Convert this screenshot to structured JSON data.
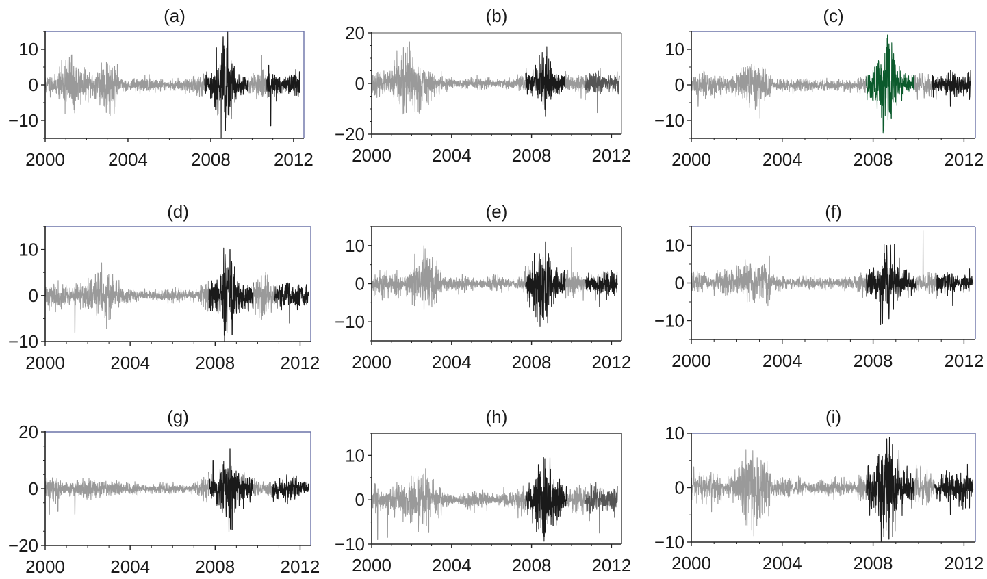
{
  "figure": {
    "colors": {
      "calm": "#9a9a9a",
      "crisis": "#1a1a1a",
      "second_period_dark": "#1a1a1a",
      "second_period_mid": "#555555",
      "highlight": "#0b5a2c",
      "axes_frame_blue": "#6b73a8",
      "axes_frame_grey": "#888888",
      "axes_frame_black": "#333333"
    }
  },
  "chart_data": [
    {
      "type": "line",
      "title": "(a)",
      "xlabel": "",
      "ylabel": "",
      "xlim": [
        2000,
        2012.5
      ],
      "ylim": [
        -15,
        15
      ],
      "xticks": [
        "2000",
        "2004",
        "2008",
        "2012"
      ],
      "yticks": [
        "10",
        "0",
        "−10"
      ],
      "ytick_values": [
        10,
        0,
        -10
      ],
      "frame": "blue",
      "base_amp": 1.3,
      "seed": 11,
      "spikes": [
        [
          2001.0,
          7
        ],
        [
          2001.4,
          -7
        ],
        [
          2008.6,
          13.5
        ],
        [
          2008.7,
          -12
        ],
        [
          2010.9,
          -11.5
        ],
        [
          2010.8,
          5.5
        ]
      ],
      "bursts": [
        [
          2001.2,
          0.5,
          1.6
        ],
        [
          2002.9,
          0.6,
          1.5
        ],
        [
          2008.6,
          0.4,
          3.2
        ]
      ],
      "segments": [
        {
          "start": 2000.0,
          "end": 2007.7,
          "color": "calm"
        },
        {
          "start": 2007.7,
          "end": 2009.8,
          "color": "crisis"
        },
        {
          "start": 2009.8,
          "end": 2010.7,
          "color": "calm"
        },
        {
          "start": 2010.7,
          "end": 2012.3,
          "color": "second_period_dark"
        }
      ]
    },
    {
      "type": "line",
      "title": "(b)",
      "xlabel": "",
      "ylabel": "",
      "xlim": [
        2000,
        2012.5
      ],
      "ylim": [
        -20,
        20
      ],
      "xticks": [
        "2000",
        "2004",
        "2008",
        "2012"
      ],
      "yticks": [
        "20",
        "0",
        "−20"
      ],
      "ytick_values": [
        20,
        0,
        -20
      ],
      "frame": "grey",
      "base_amp": 1.5,
      "seed": 23,
      "spikes": [
        [
          2001.9,
          16.5
        ],
        [
          2002.3,
          -11
        ],
        [
          2008.7,
          -13
        ],
        [
          2008.6,
          10
        ],
        [
          2011.3,
          -11.5
        ]
      ],
      "bursts": [
        [
          2001.9,
          0.9,
          2.6
        ],
        [
          2008.6,
          0.4,
          2.8
        ]
      ],
      "segments": [
        {
          "start": 2000.0,
          "end": 2007.7,
          "color": "calm"
        },
        {
          "start": 2007.7,
          "end": 2009.7,
          "color": "crisis"
        },
        {
          "start": 2009.7,
          "end": 2010.7,
          "color": "calm"
        },
        {
          "start": 2010.7,
          "end": 2012.4,
          "color": "second_period_mid"
        }
      ]
    },
    {
      "type": "line",
      "title": "(c)",
      "xlabel": "",
      "ylabel": "",
      "xlim": [
        2000,
        2012.5
      ],
      "ylim": [
        -15,
        15
      ],
      "xticks": [
        "2000",
        "2004",
        "2008",
        "2012"
      ],
      "yticks": [
        "10",
        "0",
        "−10"
      ],
      "ytick_values": [
        10,
        0,
        -10
      ],
      "frame": "blue",
      "base_amp": 1.2,
      "seed": 37,
      "spikes": [
        [
          2000.3,
          -6
        ],
        [
          2008.7,
          11.5
        ],
        [
          2008.8,
          -9.5
        ],
        [
          2011.4,
          -6
        ]
      ],
      "bursts": [
        [
          2002.8,
          0.6,
          1.4
        ],
        [
          2008.6,
          0.5,
          3.5
        ]
      ],
      "segments": [
        {
          "start": 2000.0,
          "end": 2007.7,
          "color": "calm"
        },
        {
          "start": 2007.7,
          "end": 2009.8,
          "color": "highlight"
        },
        {
          "start": 2009.8,
          "end": 2010.6,
          "color": "calm"
        },
        {
          "start": 2010.6,
          "end": 2012.3,
          "color": "second_period_dark"
        }
      ]
    },
    {
      "type": "line",
      "title": "(d)",
      "xlabel": "",
      "ylabel": "",
      "xlim": [
        2000,
        2012.5
      ],
      "ylim": [
        -10,
        15
      ],
      "xticks": [
        "2000",
        "2004",
        "2008",
        "2012"
      ],
      "yticks": [
        "10",
        "0",
        "−10"
      ],
      "ytick_values": [
        10,
        0,
        -10
      ],
      "frame": "blue",
      "base_amp": 1.0,
      "seed": 41,
      "spikes": [
        [
          2001.4,
          -8
        ],
        [
          2002.6,
          5
        ],
        [
          2008.7,
          10
        ],
        [
          2008.8,
          -8.5
        ],
        [
          2011.5,
          -6
        ]
      ],
      "bursts": [
        [
          2002.8,
          0.6,
          1.5
        ],
        [
          2008.6,
          0.5,
          3.0
        ],
        [
          2010.3,
          0.3,
          1.6
        ]
      ],
      "segments": [
        {
          "start": 2000.0,
          "end": 2007.7,
          "color": "calm"
        },
        {
          "start": 2007.7,
          "end": 2009.8,
          "color": "crisis"
        },
        {
          "start": 2009.8,
          "end": 2010.8,
          "color": "calm"
        },
        {
          "start": 2010.8,
          "end": 2012.4,
          "color": "second_period_dark"
        }
      ]
    },
    {
      "type": "line",
      "title": "(e)",
      "xlabel": "",
      "ylabel": "",
      "xlim": [
        2000,
        2012.5
      ],
      "ylim": [
        -15,
        15
      ],
      "xticks": [
        "2000",
        "2004",
        "2008",
        "2012"
      ],
      "yticks": [
        "10",
        "0",
        "−10"
      ],
      "ytick_values": [
        10,
        0,
        -10
      ],
      "frame": "black",
      "base_amp": 1.2,
      "seed": 53,
      "spikes": [
        [
          2002.6,
          6.5
        ],
        [
          2002.9,
          6.5
        ],
        [
          2008.7,
          11
        ],
        [
          2008.6,
          -9.5
        ],
        [
          2010.0,
          9.5
        ],
        [
          2011.4,
          -6
        ]
      ],
      "bursts": [
        [
          2002.7,
          0.7,
          2.0
        ],
        [
          2008.6,
          0.5,
          3.0
        ]
      ],
      "segments": [
        {
          "start": 2000.0,
          "end": 2007.7,
          "color": "calm"
        },
        {
          "start": 2007.7,
          "end": 2009.7,
          "color": "crisis"
        },
        {
          "start": 2009.7,
          "end": 2010.7,
          "color": "calm"
        },
        {
          "start": 2010.7,
          "end": 2012.3,
          "color": "second_period_dark"
        }
      ]
    },
    {
      "type": "line",
      "title": "(f)",
      "xlabel": "",
      "ylabel": "",
      "xlim": [
        2000,
        2012.5
      ],
      "ylim": [
        -15,
        15
      ],
      "xticks": [
        "2000",
        "2004",
        "2008",
        "2012"
      ],
      "yticks": [
        "10",
        "0",
        "−10"
      ],
      "ytick_values": [
        10,
        0,
        -10
      ],
      "frame": "blue",
      "base_amp": 1.1,
      "seed": 67,
      "spikes": [
        [
          2002.6,
          5
        ],
        [
          2008.6,
          10
        ],
        [
          2008.7,
          -9.5
        ],
        [
          2010.2,
          14
        ],
        [
          2011.5,
          -6
        ]
      ],
      "bursts": [
        [
          2002.8,
          0.6,
          1.6
        ],
        [
          2008.6,
          0.5,
          3.0
        ]
      ],
      "segments": [
        {
          "start": 2000.0,
          "end": 2007.7,
          "color": "calm"
        },
        {
          "start": 2007.7,
          "end": 2009.9,
          "color": "crisis"
        },
        {
          "start": 2009.9,
          "end": 2010.8,
          "color": "calm"
        },
        {
          "start": 2010.8,
          "end": 2012.4,
          "color": "second_period_dark"
        }
      ]
    },
    {
      "type": "line",
      "title": "(g)",
      "xlabel": "",
      "ylabel": "",
      "xlim": [
        2000,
        2012.5
      ],
      "ylim": [
        -20,
        20
      ],
      "xticks": [
        "2000",
        "2004",
        "2008",
        "2012"
      ],
      "yticks": [
        "20",
        "0",
        "−20"
      ],
      "ytick_values": [
        20,
        0,
        -20
      ],
      "frame": "blue",
      "base_amp": 1.3,
      "seed": 79,
      "spikes": [
        [
          2000.2,
          -9
        ],
        [
          2000.6,
          -8
        ],
        [
          2001.4,
          -9
        ],
        [
          2008.7,
          14
        ],
        [
          2008.8,
          -14.5
        ],
        [
          2007.9,
          10
        ]
      ],
      "bursts": [
        [
          2008.6,
          0.5,
          3.0
        ]
      ],
      "segments": [
        {
          "start": 2000.0,
          "end": 2007.7,
          "color": "calm"
        },
        {
          "start": 2007.7,
          "end": 2009.8,
          "color": "crisis"
        },
        {
          "start": 2009.8,
          "end": 2010.7,
          "color": "calm"
        },
        {
          "start": 2010.7,
          "end": 2012.4,
          "color": "second_period_dark"
        }
      ]
    },
    {
      "type": "line",
      "title": "(h)",
      "xlabel": "",
      "ylabel": "",
      "xlim": [
        2000,
        2012.5
      ],
      "ylim": [
        -10,
        15
      ],
      "xticks": [
        "2000",
        "2004",
        "2008",
        "2012"
      ],
      "yticks": [
        "10",
        "0",
        "−10"
      ],
      "ytick_values": [
        10,
        0,
        -10
      ],
      "frame": "black",
      "base_amp": 1.2,
      "seed": 83,
      "spikes": [
        [
          2000.3,
          -9
        ],
        [
          2000.8,
          -8.5
        ],
        [
          2002.7,
          7
        ],
        [
          2008.6,
          9.5
        ],
        [
          2008.7,
          -7.5
        ],
        [
          2011.4,
          -7.5
        ]
      ],
      "bursts": [
        [
          2002.5,
          0.6,
          1.5
        ],
        [
          2008.6,
          0.5,
          2.6
        ]
      ],
      "segments": [
        {
          "start": 2000.0,
          "end": 2007.7,
          "color": "calm"
        },
        {
          "start": 2007.7,
          "end": 2009.8,
          "color": "crisis"
        },
        {
          "start": 2009.8,
          "end": 2010.7,
          "color": "calm"
        },
        {
          "start": 2010.7,
          "end": 2012.3,
          "color": "second_period_mid"
        }
      ]
    },
    {
      "type": "line",
      "title": "(i)",
      "xlabel": "",
      "ylabel": "",
      "xlim": [
        2000,
        2012.5
      ],
      "ylim": [
        -10,
        10
      ],
      "xticks": [
        "2000",
        "2004",
        "2008",
        "2012"
      ],
      "yticks": [
        "10",
        "0",
        "−10"
      ],
      "ytick_values": [
        10,
        0,
        -10
      ],
      "frame": "blue",
      "base_amp": 1.1,
      "seed": 97,
      "spikes": [
        [
          2002.9,
          5.5
        ],
        [
          2003.0,
          -5.5
        ],
        [
          2008.6,
          9
        ],
        [
          2008.7,
          -9.5
        ],
        [
          2011.4,
          -5
        ]
      ],
      "bursts": [
        [
          2002.9,
          0.6,
          2.4
        ],
        [
          2008.6,
          0.5,
          3.0
        ]
      ],
      "segments": [
        {
          "start": 2000.0,
          "end": 2007.7,
          "color": "calm"
        },
        {
          "start": 2007.7,
          "end": 2009.8,
          "color": "crisis"
        },
        {
          "start": 2009.8,
          "end": 2010.7,
          "color": "calm"
        },
        {
          "start": 2010.7,
          "end": 2012.4,
          "color": "second_period_dark"
        }
      ]
    }
  ]
}
